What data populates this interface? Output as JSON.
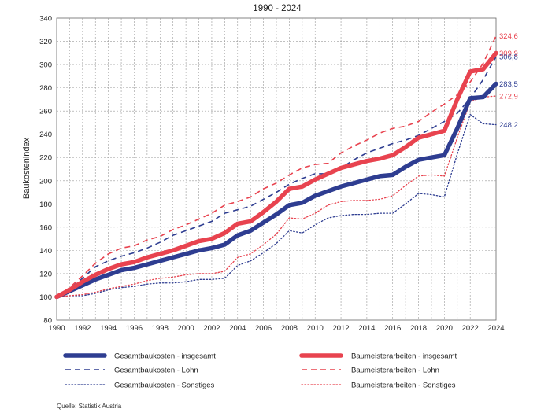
{
  "chart_data": {
    "type": "line",
    "title": "1990 - 2024",
    "ylabel": "Baukostenindex",
    "xlabel": "",
    "xlim": [
      1990,
      2024
    ],
    "ylim": [
      80,
      340
    ],
    "xticks": [
      "1990",
      "1992",
      "1994",
      "1996",
      "1998",
      "2000",
      "2002",
      "2004",
      "2006",
      "2008",
      "2010",
      "2012",
      "2014",
      "2016",
      "2018",
      "2020",
      "2022",
      "2024"
    ],
    "yticks": [
      "80",
      "100",
      "120",
      "140",
      "160",
      "180",
      "200",
      "220",
      "240",
      "260",
      "280",
      "300",
      "320",
      "340"
    ],
    "grid": true,
    "legend_position": "bottom",
    "x": [
      1990,
      1991,
      1992,
      1993,
      1994,
      1995,
      1996,
      1997,
      1998,
      1999,
      2000,
      2001,
      2002,
      2003,
      2004,
      2005,
      2006,
      2007,
      2008,
      2009,
      2010,
      2011,
      2012,
      2013,
      2014,
      2015,
      2016,
      2017,
      2018,
      2019,
      2020,
      2021,
      2022,
      2023,
      2024
    ],
    "series": [
      {
        "name": "Gesamtbaukosten - insgesamt",
        "color": "#2e3d91",
        "style": "solid-thick",
        "values": [
          100,
          105,
          110,
          115,
          119,
          123,
          125,
          128,
          131,
          134,
          137,
          140,
          142,
          145,
          153,
          157,
          164,
          171,
          179,
          181,
          187,
          191,
          195,
          198,
          201,
          204,
          205,
          212,
          218,
          220,
          222,
          245,
          271,
          272,
          283.5
        ],
        "end_label": "283,5"
      },
      {
        "name": "Baumeisterarbeiten - insgesamt",
        "color": "#e8434f",
        "style": "solid-thick",
        "values": [
          100,
          106,
          113,
          119,
          124,
          128,
          130,
          134,
          137,
          140,
          144,
          148,
          150,
          155,
          163,
          165,
          173,
          182,
          193,
          195,
          201,
          206,
          211,
          214,
          217,
          219,
          222,
          229,
          237,
          240,
          243,
          270,
          294,
          296,
          309.9
        ],
        "end_label": "309,9"
      },
      {
        "name": "Gesamtbaukosten - Lohn",
        "color": "#2e3d91",
        "style": "dashed",
        "values": [
          100,
          107,
          116,
          126,
          131,
          135,
          138,
          142,
          147,
          153,
          157,
          161,
          165,
          172,
          175,
          178,
          184,
          190,
          197,
          202,
          206,
          206,
          211,
          218,
          224,
          228,
          232,
          235,
          239,
          245,
          251,
          258,
          271,
          287,
          306.8
        ],
        "end_label": "306,8"
      },
      {
        "name": "Baumeisterarbeiten - Lohn",
        "color": "#e8434f",
        "style": "dashed",
        "values": [
          100,
          108,
          118,
          129,
          137,
          142,
          144,
          149,
          152,
          158,
          162,
          167,
          172,
          179,
          182,
          186,
          193,
          198,
          205,
          211,
          214,
          215,
          224,
          230,
          235,
          241,
          245,
          247,
          251,
          259,
          266,
          274,
          285,
          301,
          324.6
        ],
        "end_label": "324,6"
      },
      {
        "name": "Gesamtbaukosten - Sonstiges",
        "color": "#2e3d91",
        "style": "dotted",
        "values": [
          100,
          101,
          101,
          103,
          106,
          108,
          109,
          111,
          112,
          112,
          113,
          115,
          115,
          116,
          127,
          131,
          138,
          146,
          157,
          155,
          162,
          168,
          170,
          171,
          171,
          172,
          172,
          180,
          189,
          188,
          186,
          223,
          257,
          249,
          248.2
        ],
        "end_label": "248,2"
      },
      {
        "name": "Baumeisterarbeiten - Sonstiges",
        "color": "#e8434f",
        "style": "dotted",
        "values": [
          100,
          101,
          102,
          104,
          107,
          109,
          111,
          114,
          116,
          117,
          119,
          120,
          120,
          122,
          134,
          137,
          145,
          154,
          168,
          167,
          172,
          179,
          182,
          183,
          183,
          184,
          187,
          196,
          204,
          205,
          204,
          237,
          268,
          272,
          272.9
        ],
        "end_label": "272,9"
      }
    ],
    "legend_order": [
      0,
      1,
      2,
      3,
      4,
      5
    ]
  },
  "source_text": "Quelle: Statistik Austria"
}
